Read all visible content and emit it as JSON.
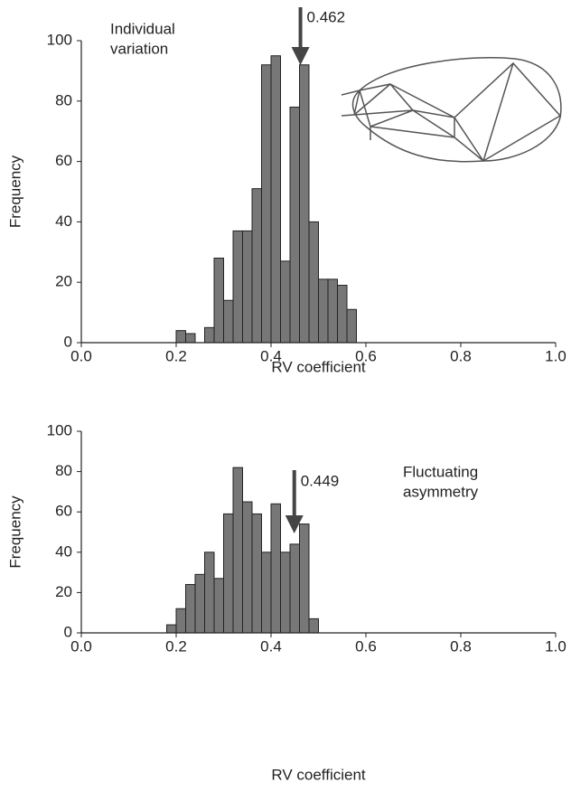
{
  "chart_data": [
    {
      "type": "histogram",
      "xlabel": "RV coefficient",
      "ylabel": "Frequency",
      "bins": [
        0.2,
        0.22,
        0.24,
        0.26,
        0.28,
        0.3,
        0.32,
        0.34,
        0.36,
        0.38,
        0.4,
        0.42,
        0.44,
        0.46,
        0.48,
        0.5,
        0.52,
        0.54,
        0.56,
        0.58
      ],
      "values": [
        4,
        3,
        0,
        5,
        28,
        14,
        37,
        37,
        51,
        92,
        95,
        27,
        78,
        92,
        40,
        21,
        21,
        19,
        11
      ],
      "color": "#777777",
      "xlim": [
        0,
        1
      ],
      "xticks": [
        {
          "value": 0,
          "label": "0.0"
        },
        0.2,
        0.4,
        0.6,
        0.8,
        {
          "value": 1,
          "label": "1.0"
        }
      ],
      "ylim": [
        0,
        100
      ],
      "yticks": [
        0,
        20,
        40,
        60,
        80,
        100
      ],
      "annotation": [
        "Individual",
        "variation"
      ],
      "marker": 0.462
    },
    {
      "type": "histogram",
      "xlabel": "RV coefficient",
      "ylabel": "Frequency",
      "bins": [
        0.18,
        0.2,
        0.22,
        0.24,
        0.26,
        0.28,
        0.3,
        0.32,
        0.34,
        0.36,
        0.38,
        0.4,
        0.42,
        0.44,
        0.46,
        0.48,
        0.5
      ],
      "values": [
        4,
        12,
        24,
        29,
        40,
        27,
        59,
        82,
        65,
        59,
        40,
        64,
        40,
        44,
        54,
        7
      ],
      "color": "#777777",
      "xlim": [
        0,
        1
      ],
      "xticks": [
        {
          "value": 0,
          "label": "0.0"
        },
        0.2,
        0.4,
        0.6,
        0.8,
        {
          "value": 1,
          "label": "1.0"
        }
      ],
      "ylim": [
        0,
        100
      ],
      "yticks": [
        0,
        20,
        40,
        60,
        80,
        100
      ],
      "annotation": [
        "Fluctuating",
        "asymmetry"
      ],
      "marker": 0.449
    }
  ]
}
